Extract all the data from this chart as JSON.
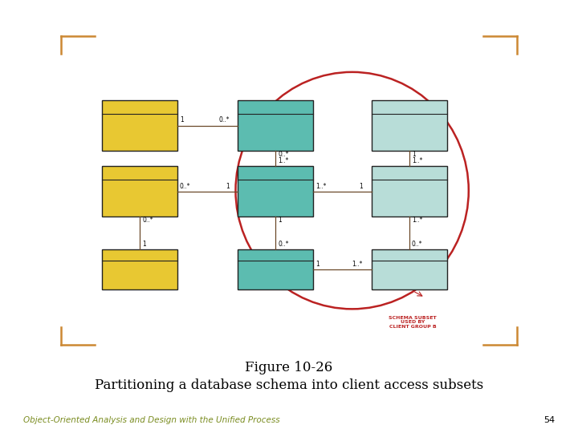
{
  "panel_bg": "#b8996e",
  "fig_bg": "#ffffff",
  "border_color": "#cc8833",
  "yellow_color": "#e8c832",
  "teal_color": "#5cbcb0",
  "light_teal_color": "#b8ddd8",
  "box_border": "#222222",
  "line_color": "#6a4828",
  "white_ellipse_color": "#ffffff",
  "red_ellipse_color": "#bb2222",
  "title_line1": "Figure 10-26",
  "title_line2": "Partitioning a database schema into client access subsets",
  "footer_text": "Object-Oriented Analysis and Design with the Unified Process",
  "footer_page": "54"
}
